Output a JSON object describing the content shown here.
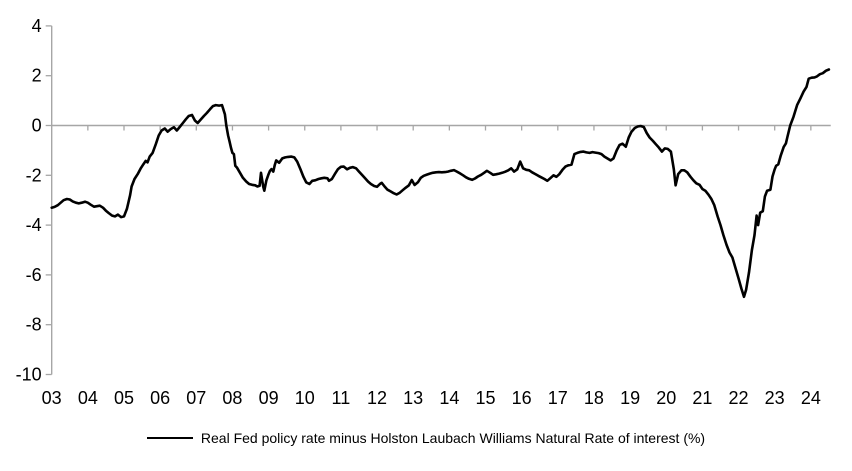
{
  "chart_data": {
    "type": "line",
    "title": "",
    "legend": {
      "position": "bottom",
      "label": "Real Fed policy rate minus Holston Laubach Williams Natural Rate of interest (%)"
    },
    "colors": {
      "line": "#000000",
      "axis": "#a6a6a6",
      "text": "#000000",
      "background": "#ffffff"
    },
    "x_axis": {
      "tick_labels": [
        "03",
        "04",
        "05",
        "06",
        "07",
        "08",
        "09",
        "10",
        "11",
        "12",
        "13",
        "14",
        "15",
        "16",
        "17",
        "18",
        "19",
        "20",
        "21",
        "22",
        "23",
        "24"
      ],
      "tick_years": [
        2003,
        2004,
        2005,
        2006,
        2007,
        2008,
        2009,
        2010,
        2011,
        2012,
        2013,
        2014,
        2015,
        2016,
        2017,
        2018,
        2019,
        2020,
        2021,
        2022,
        2023,
        2024
      ],
      "range": [
        2003,
        2024.55
      ]
    },
    "y_axis": {
      "ticks": [
        4,
        2,
        0,
        -2,
        -4,
        -6,
        -8,
        -10
      ],
      "range": [
        -10,
        4
      ],
      "grid": "zero-line-only"
    },
    "series": [
      {
        "name": "Real Fed policy rate minus Holston Laubach Williams Natural Rate of interest (%)",
        "color": "#000000",
        "points": [
          [
            2003.0,
            -3.3
          ],
          [
            2003.08,
            -3.27
          ],
          [
            2003.17,
            -3.2
          ],
          [
            2003.25,
            -3.1
          ],
          [
            2003.33,
            -3.0
          ],
          [
            2003.42,
            -2.95
          ],
          [
            2003.5,
            -2.97
          ],
          [
            2003.58,
            -3.05
          ],
          [
            2003.67,
            -3.1
          ],
          [
            2003.75,
            -3.13
          ],
          [
            2003.83,
            -3.1
          ],
          [
            2003.92,
            -3.06
          ],
          [
            2004.0,
            -3.1
          ],
          [
            2004.08,
            -3.18
          ],
          [
            2004.17,
            -3.26
          ],
          [
            2004.25,
            -3.24
          ],
          [
            2004.33,
            -3.22
          ],
          [
            2004.42,
            -3.3
          ],
          [
            2004.5,
            -3.42
          ],
          [
            2004.58,
            -3.52
          ],
          [
            2004.67,
            -3.62
          ],
          [
            2004.75,
            -3.65
          ],
          [
            2004.83,
            -3.58
          ],
          [
            2004.92,
            -3.68
          ],
          [
            2005.0,
            -3.65
          ],
          [
            2005.08,
            -3.35
          ],
          [
            2005.17,
            -2.8
          ],
          [
            2005.21,
            -2.45
          ],
          [
            2005.29,
            -2.15
          ],
          [
            2005.38,
            -1.95
          ],
          [
            2005.46,
            -1.73
          ],
          [
            2005.54,
            -1.55
          ],
          [
            2005.6,
            -1.42
          ],
          [
            2005.65,
            -1.48
          ],
          [
            2005.71,
            -1.25
          ],
          [
            2005.79,
            -1.1
          ],
          [
            2005.88,
            -0.75
          ],
          [
            2005.96,
            -0.4
          ],
          [
            2006.04,
            -0.2
          ],
          [
            2006.13,
            -0.12
          ],
          [
            2006.21,
            -0.25
          ],
          [
            2006.29,
            -0.15
          ],
          [
            2006.38,
            -0.07
          ],
          [
            2006.46,
            -0.2
          ],
          [
            2006.54,
            -0.06
          ],
          [
            2006.63,
            0.1
          ],
          [
            2006.71,
            0.25
          ],
          [
            2006.79,
            0.38
          ],
          [
            2006.88,
            0.42
          ],
          [
            2006.96,
            0.2
          ],
          [
            2007.04,
            0.1
          ],
          [
            2007.13,
            0.25
          ],
          [
            2007.21,
            0.38
          ],
          [
            2007.29,
            0.5
          ],
          [
            2007.38,
            0.65
          ],
          [
            2007.46,
            0.78
          ],
          [
            2007.54,
            0.82
          ],
          [
            2007.63,
            0.8
          ],
          [
            2007.71,
            0.82
          ],
          [
            2007.79,
            0.45
          ],
          [
            2007.83,
            0.0
          ],
          [
            2007.88,
            -0.4
          ],
          [
            2007.92,
            -0.65
          ],
          [
            2007.96,
            -0.9
          ],
          [
            2008.0,
            -1.1
          ],
          [
            2008.04,
            -1.15
          ],
          [
            2008.08,
            -1.62
          ],
          [
            2008.13,
            -1.7
          ],
          [
            2008.21,
            -1.9
          ],
          [
            2008.29,
            -2.1
          ],
          [
            2008.38,
            -2.25
          ],
          [
            2008.46,
            -2.35
          ],
          [
            2008.54,
            -2.38
          ],
          [
            2008.63,
            -2.4
          ],
          [
            2008.69,
            -2.45
          ],
          [
            2008.75,
            -2.42
          ],
          [
            2008.79,
            -1.9
          ],
          [
            2008.85,
            -2.45
          ],
          [
            2008.88,
            -2.62
          ],
          [
            2008.94,
            -2.2
          ],
          [
            2009.0,
            -1.95
          ],
          [
            2009.04,
            -1.82
          ],
          [
            2009.08,
            -1.75
          ],
          [
            2009.13,
            -1.85
          ],
          [
            2009.17,
            -1.6
          ],
          [
            2009.21,
            -1.4
          ],
          [
            2009.29,
            -1.5
          ],
          [
            2009.38,
            -1.32
          ],
          [
            2009.46,
            -1.28
          ],
          [
            2009.54,
            -1.26
          ],
          [
            2009.63,
            -1.25
          ],
          [
            2009.71,
            -1.28
          ],
          [
            2009.79,
            -1.45
          ],
          [
            2009.88,
            -1.75
          ],
          [
            2009.96,
            -2.05
          ],
          [
            2010.04,
            -2.28
          ],
          [
            2010.13,
            -2.35
          ],
          [
            2010.21,
            -2.22
          ],
          [
            2010.29,
            -2.2
          ],
          [
            2010.38,
            -2.15
          ],
          [
            2010.46,
            -2.12
          ],
          [
            2010.54,
            -2.1
          ],
          [
            2010.63,
            -2.12
          ],
          [
            2010.67,
            -2.22
          ],
          [
            2010.75,
            -2.15
          ],
          [
            2010.83,
            -1.95
          ],
          [
            2010.92,
            -1.75
          ],
          [
            2011.0,
            -1.66
          ],
          [
            2011.08,
            -1.65
          ],
          [
            2011.17,
            -1.76
          ],
          [
            2011.25,
            -1.7
          ],
          [
            2011.33,
            -1.67
          ],
          [
            2011.42,
            -1.72
          ],
          [
            2011.5,
            -1.85
          ],
          [
            2011.58,
            -1.98
          ],
          [
            2011.67,
            -2.12
          ],
          [
            2011.75,
            -2.25
          ],
          [
            2011.83,
            -2.35
          ],
          [
            2011.92,
            -2.43
          ],
          [
            2012.0,
            -2.46
          ],
          [
            2012.08,
            -2.35
          ],
          [
            2012.13,
            -2.3
          ],
          [
            2012.21,
            -2.45
          ],
          [
            2012.29,
            -2.58
          ],
          [
            2012.38,
            -2.65
          ],
          [
            2012.46,
            -2.72
          ],
          [
            2012.54,
            -2.77
          ],
          [
            2012.63,
            -2.7
          ],
          [
            2012.71,
            -2.6
          ],
          [
            2012.79,
            -2.5
          ],
          [
            2012.88,
            -2.4
          ],
          [
            2012.96,
            -2.19
          ],
          [
            2013.04,
            -2.39
          ],
          [
            2013.13,
            -2.28
          ],
          [
            2013.21,
            -2.1
          ],
          [
            2013.29,
            -2.02
          ],
          [
            2013.38,
            -1.97
          ],
          [
            2013.46,
            -1.93
          ],
          [
            2013.54,
            -1.9
          ],
          [
            2013.63,
            -1.88
          ],
          [
            2013.71,
            -1.87
          ],
          [
            2013.79,
            -1.88
          ],
          [
            2013.88,
            -1.87
          ],
          [
            2013.96,
            -1.85
          ],
          [
            2014.04,
            -1.82
          ],
          [
            2014.13,
            -1.79
          ],
          [
            2014.21,
            -1.85
          ],
          [
            2014.29,
            -1.92
          ],
          [
            2014.38,
            -2.0
          ],
          [
            2014.46,
            -2.08
          ],
          [
            2014.54,
            -2.14
          ],
          [
            2014.63,
            -2.18
          ],
          [
            2014.71,
            -2.13
          ],
          [
            2014.79,
            -2.05
          ],
          [
            2014.88,
            -1.98
          ],
          [
            2014.96,
            -1.9
          ],
          [
            2015.04,
            -1.82
          ],
          [
            2015.13,
            -1.9
          ],
          [
            2015.21,
            -1.98
          ],
          [
            2015.29,
            -1.96
          ],
          [
            2015.38,
            -1.93
          ],
          [
            2015.46,
            -1.9
          ],
          [
            2015.54,
            -1.86
          ],
          [
            2015.63,
            -1.8
          ],
          [
            2015.71,
            -1.72
          ],
          [
            2015.79,
            -1.85
          ],
          [
            2015.88,
            -1.76
          ],
          [
            2015.96,
            -1.45
          ],
          [
            2016.04,
            -1.72
          ],
          [
            2016.13,
            -1.78
          ],
          [
            2016.21,
            -1.8
          ],
          [
            2016.29,
            -1.88
          ],
          [
            2016.38,
            -1.95
          ],
          [
            2016.46,
            -2.02
          ],
          [
            2016.54,
            -2.08
          ],
          [
            2016.63,
            -2.15
          ],
          [
            2016.71,
            -2.22
          ],
          [
            2016.79,
            -2.12
          ],
          [
            2016.88,
            -2.0
          ],
          [
            2016.96,
            -2.06
          ],
          [
            2017.04,
            -1.96
          ],
          [
            2017.13,
            -1.78
          ],
          [
            2017.21,
            -1.65
          ],
          [
            2017.29,
            -1.6
          ],
          [
            2017.38,
            -1.57
          ],
          [
            2017.46,
            -1.15
          ],
          [
            2017.54,
            -1.1
          ],
          [
            2017.63,
            -1.06
          ],
          [
            2017.71,
            -1.05
          ],
          [
            2017.79,
            -1.08
          ],
          [
            2017.88,
            -1.1
          ],
          [
            2017.96,
            -1.07
          ],
          [
            2018.04,
            -1.09
          ],
          [
            2018.13,
            -1.11
          ],
          [
            2018.21,
            -1.15
          ],
          [
            2018.29,
            -1.25
          ],
          [
            2018.38,
            -1.33
          ],
          [
            2018.46,
            -1.4
          ],
          [
            2018.54,
            -1.32
          ],
          [
            2018.63,
            -1.0
          ],
          [
            2018.71,
            -0.78
          ],
          [
            2018.79,
            -0.73
          ],
          [
            2018.88,
            -0.85
          ],
          [
            2018.96,
            -0.48
          ],
          [
            2019.04,
            -0.25
          ],
          [
            2019.13,
            -0.1
          ],
          [
            2019.21,
            -0.04
          ],
          [
            2019.29,
            -0.02
          ],
          [
            2019.38,
            -0.06
          ],
          [
            2019.46,
            -0.3
          ],
          [
            2019.54,
            -0.48
          ],
          [
            2019.63,
            -0.62
          ],
          [
            2019.71,
            -0.75
          ],
          [
            2019.79,
            -0.88
          ],
          [
            2019.88,
            -1.05
          ],
          [
            2019.96,
            -0.92
          ],
          [
            2020.04,
            -0.94
          ],
          [
            2020.13,
            -1.05
          ],
          [
            2020.21,
            -1.75
          ],
          [
            2020.26,
            -2.4
          ],
          [
            2020.33,
            -1.95
          ],
          [
            2020.42,
            -1.8
          ],
          [
            2020.5,
            -1.8
          ],
          [
            2020.58,
            -1.88
          ],
          [
            2020.67,
            -2.06
          ],
          [
            2020.75,
            -2.2
          ],
          [
            2020.83,
            -2.32
          ],
          [
            2020.92,
            -2.38
          ],
          [
            2021.0,
            -2.55
          ],
          [
            2021.08,
            -2.62
          ],
          [
            2021.17,
            -2.78
          ],
          [
            2021.25,
            -2.95
          ],
          [
            2021.33,
            -3.2
          ],
          [
            2021.42,
            -3.65
          ],
          [
            2021.5,
            -4.0
          ],
          [
            2021.58,
            -4.4
          ],
          [
            2021.67,
            -4.8
          ],
          [
            2021.75,
            -5.1
          ],
          [
            2021.83,
            -5.3
          ],
          [
            2021.92,
            -5.75
          ],
          [
            2022.0,
            -6.15
          ],
          [
            2022.08,
            -6.55
          ],
          [
            2022.15,
            -6.88
          ],
          [
            2022.21,
            -6.6
          ],
          [
            2022.29,
            -5.9
          ],
          [
            2022.37,
            -5.0
          ],
          [
            2022.44,
            -4.4
          ],
          [
            2022.5,
            -3.62
          ],
          [
            2022.54,
            -4.0
          ],
          [
            2022.6,
            -3.5
          ],
          [
            2022.67,
            -3.44
          ],
          [
            2022.73,
            -2.85
          ],
          [
            2022.79,
            -2.62
          ],
          [
            2022.88,
            -2.58
          ],
          [
            2022.94,
            -2.05
          ],
          [
            2023.0,
            -1.76
          ],
          [
            2023.04,
            -1.62
          ],
          [
            2023.1,
            -1.56
          ],
          [
            2023.17,
            -1.2
          ],
          [
            2023.25,
            -0.86
          ],
          [
            2023.31,
            -0.72
          ],
          [
            2023.35,
            -0.46
          ],
          [
            2023.43,
            0.0
          ],
          [
            2023.52,
            0.35
          ],
          [
            2023.62,
            0.82
          ],
          [
            2023.71,
            1.09
          ],
          [
            2023.8,
            1.36
          ],
          [
            2023.88,
            1.55
          ],
          [
            2023.94,
            1.88
          ],
          [
            2024.02,
            1.92
          ],
          [
            2024.1,
            1.93
          ],
          [
            2024.17,
            1.97
          ],
          [
            2024.25,
            2.06
          ],
          [
            2024.33,
            2.1
          ],
          [
            2024.42,
            2.2
          ],
          [
            2024.5,
            2.25
          ]
        ]
      }
    ]
  }
}
